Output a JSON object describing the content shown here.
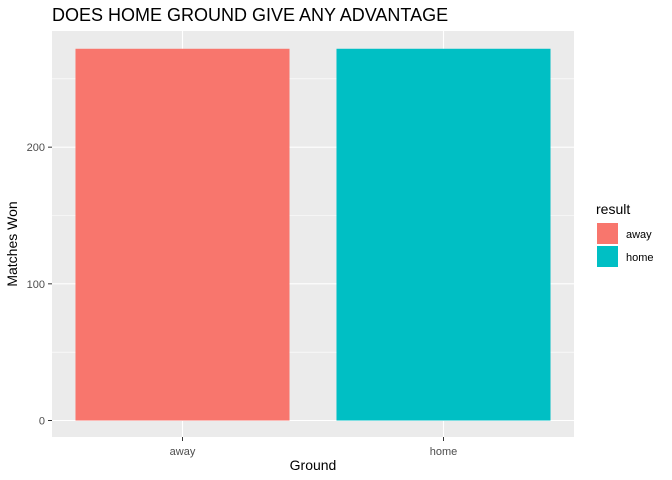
{
  "chart_data": {
    "type": "bar",
    "title": "DOES HOME GROUND GIVE ANY ADVANTAGE",
    "xlabel": "Ground",
    "ylabel": "Matches Won",
    "categories": [
      "away",
      "home"
    ],
    "values": [
      272,
      272
    ],
    "colors": [
      "#F8766D",
      "#00BFC4"
    ],
    "ylim": [
      0,
      285
    ],
    "y_ticks": [
      0,
      100,
      200
    ],
    "grid": true,
    "panel_background": "#EBEBEB",
    "legend": {
      "title": "result",
      "position": "right",
      "entries": [
        {
          "label": "away",
          "color": "#F8766D"
        },
        {
          "label": "home",
          "color": "#00BFC4"
        }
      ]
    }
  }
}
